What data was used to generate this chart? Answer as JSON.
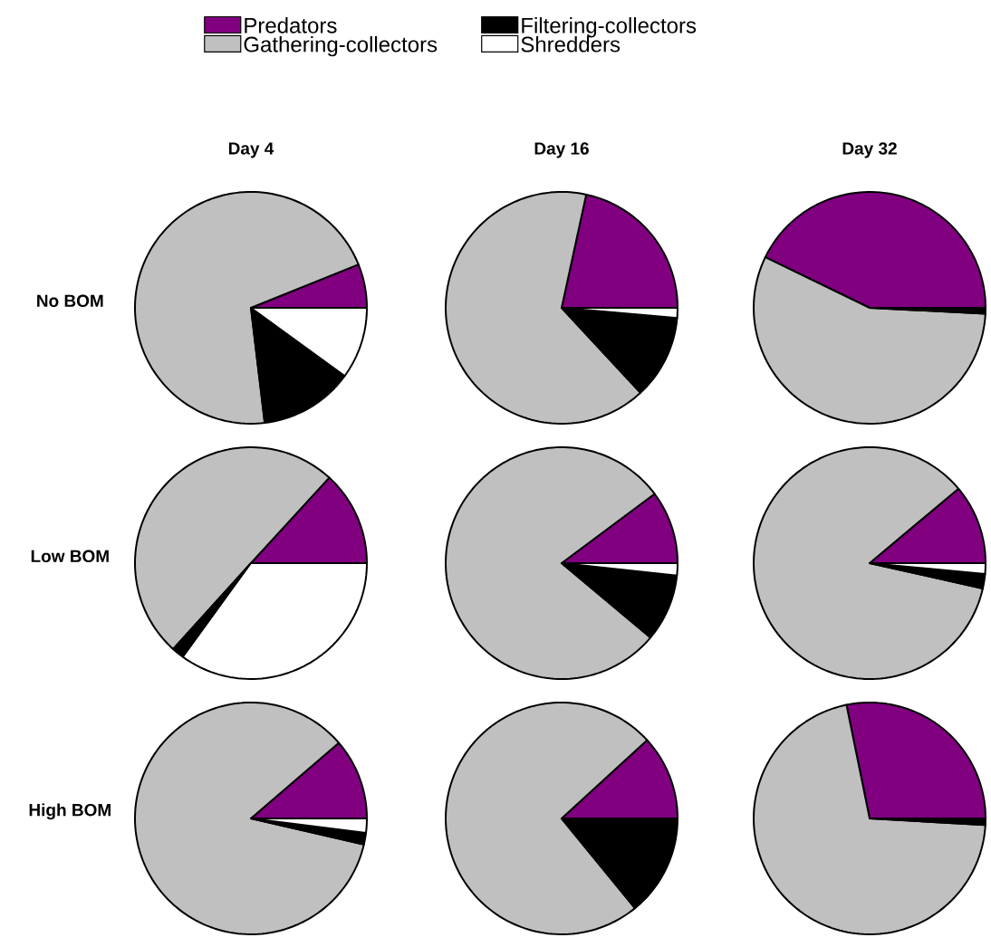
{
  "chart_data": [
    {
      "type": "pie",
      "title": "Day 4",
      "ylabel": "No BOM",
      "categories": [
        "Predators",
        "Gathering-collectors",
        "Filtering-collectors",
        "Shredders"
      ],
      "values": [
        6.1,
        70.8,
        13.1,
        10.0
      ],
      "colors": [
        "#800080",
        "#c0c0c0",
        "#000000",
        "#ffffff"
      ],
      "legend": "top"
    },
    {
      "type": "pie",
      "title": "Day 16",
      "categories": [
        null,
        null,
        null,
        null
      ],
      "values": [
        21.6,
        65.3,
        11.7,
        1.4
      ],
      "colors": [
        "#800080",
        "#c0c0c0",
        "#000000",
        "#ffffff"
      ]
    },
    {
      "type": "pie",
      "title": "Day 32",
      "categories": [
        null,
        null,
        null,
        null
      ],
      "values": [
        42.8,
        56.4,
        0.8,
        0
      ],
      "colors": [
        "#800080",
        "#c0c0c0",
        "#000000",
        "#ffffff"
      ]
    },
    {
      "type": "pie",
      "ylabel": "Low BOM",
      "categories": [
        null,
        null,
        null,
        null
      ],
      "values": [
        13.2,
        50.1,
        1.7,
        35.0
      ],
      "colors": [
        "#800080",
        "#c0c0c0",
        "#000000",
        "#ffffff"
      ]
    },
    {
      "type": "pie",
      "categories": [
        null,
        null,
        null,
        null
      ],
      "values": [
        10.2,
        78.7,
        9.4,
        1.7
      ],
      "colors": [
        "#800080",
        "#c0c0c0",
        "#000000",
        "#ffffff"
      ]
    },
    {
      "type": "pie",
      "categories": [
        null,
        null,
        null,
        null
      ],
      "values": [
        11.1,
        85.4,
        2.0,
        1.5
      ],
      "colors": [
        "#800080",
        "#c0c0c0",
        "#000000",
        "#ffffff"
      ]
    },
    {
      "type": "pie",
      "ylabel": "High BOM",
      "categories": [
        null,
        null,
        null,
        null
      ],
      "values": [
        11.3,
        85.1,
        1.6,
        2.0
      ],
      "colors": [
        "#800080",
        "#c0c0c0",
        "#000000",
        "#ffffff"
      ]
    },
    {
      "type": "pie",
      "categories": [
        null,
        null,
        null,
        null
      ],
      "values": [
        11.8,
        74.1,
        14.1,
        0
      ],
      "colors": [
        "#800080",
        "#c0c0c0",
        "#000000",
        "#ffffff"
      ]
    },
    {
      "type": "pie",
      "categories": [
        null,
        null,
        null,
        null
      ],
      "values": [
        28.2,
        70.9,
        0.9,
        0
      ],
      "colors": [
        "#800080",
        "#c0c0c0",
        "#000000",
        "#ffffff"
      ]
    }
  ]
}
